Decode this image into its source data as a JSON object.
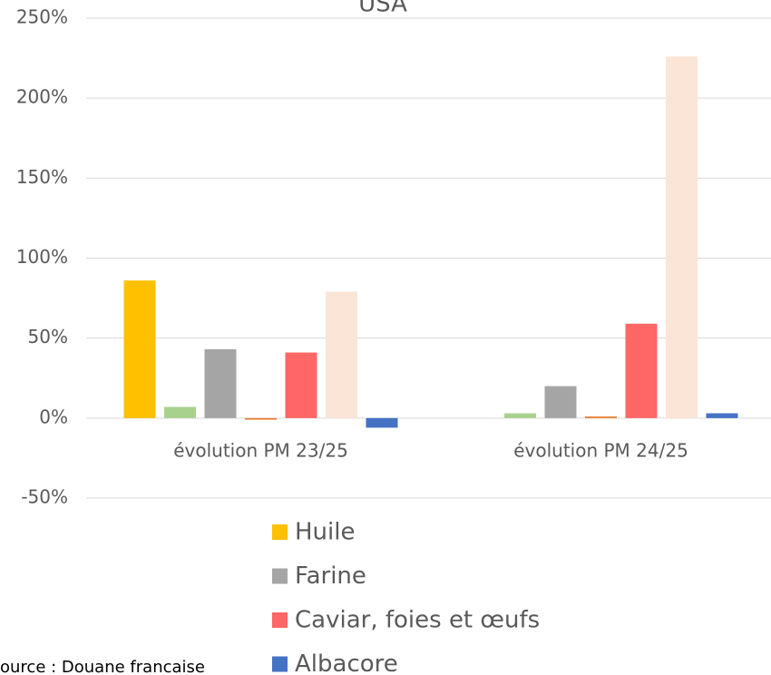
{
  "chart_data": {
    "type": "bar",
    "title": "USA",
    "categories": [
      "évolution PM 23/25",
      "évolution PM 24/25"
    ],
    "series": [
      {
        "name": "Huile",
        "color": "#FFC000",
        "values": [
          86,
          null
        ]
      },
      {
        "color": "#A9D18E",
        "values": [
          7,
          3
        ]
      },
      {
        "name": "Farine",
        "color": "#A5A5A5",
        "values": [
          43,
          20
        ]
      },
      {
        "color": "#ED7D31",
        "values": [
          -1,
          1
        ]
      },
      {
        "name": "Caviar, foies et œufs",
        "color": "#FF6666",
        "values": [
          41,
          59
        ]
      },
      {
        "color": "#FBE5D6",
        "values": [
          79,
          226
        ]
      },
      {
        "name": "Albacore",
        "color": "#4472C4",
        "values": [
          -6,
          3
        ]
      }
    ],
    "ylim": [
      -50,
      250
    ],
    "yticks": [
      {
        "value": -50,
        "label": "-50%"
      },
      {
        "value": 0,
        "label": "0%"
      },
      {
        "value": 50,
        "label": "50%"
      },
      {
        "value": 100,
        "label": "100%"
      },
      {
        "value": 150,
        "label": "150%"
      },
      {
        "value": 200,
        "label": "200%"
      },
      {
        "value": 250,
        "label": "250%"
      }
    ],
    "grid": true,
    "source": "ource : Douane francaise"
  }
}
